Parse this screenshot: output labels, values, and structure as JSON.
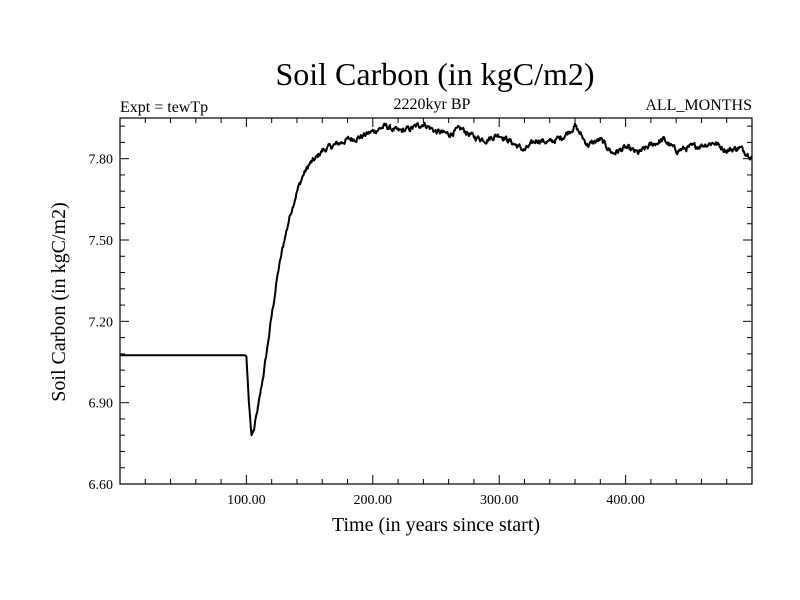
{
  "chart_data": {
    "type": "line",
    "title": "Soil Carbon (in kgC/m2)",
    "subtitle_left": "Expt = tewTp",
    "subtitle_center": "2220kyr BP",
    "subtitle_right": "ALL_MONTHS",
    "xlabel": "Time (in years since start)",
    "ylabel": "Soil Carbon (in kgC/m2)",
    "xlim": [
      0,
      500
    ],
    "ylim": [
      6.6,
      7.95
    ],
    "x_ticks": [
      100,
      200,
      300,
      400
    ],
    "x_tick_labels": [
      "100.00",
      "200.00",
      "300.00",
      "400.00"
    ],
    "y_ticks": [
      6.6,
      6.9,
      7.2,
      7.5,
      7.8
    ],
    "y_tick_labels": [
      "6.60",
      "6.90",
      "7.20",
      "7.50",
      "7.80"
    ],
    "grid": false,
    "series": [
      {
        "name": "Soil Carbon",
        "color": "#000000",
        "x": [
          0,
          99,
          100,
          102,
          104,
          106,
          110,
          115,
          120,
          125,
          130,
          135,
          140,
          145,
          150,
          155,
          160,
          170,
          180,
          190,
          200,
          210,
          220,
          230,
          240,
          250,
          260,
          270,
          280,
          290,
          300,
          310,
          320,
          330,
          340,
          350,
          360,
          370,
          380,
          390,
          400,
          410,
          420,
          430,
          440,
          450,
          460,
          470,
          480,
          490,
          500
        ],
        "values": [
          7.075,
          7.075,
          7.07,
          6.9,
          6.78,
          6.8,
          6.9,
          7.05,
          7.22,
          7.38,
          7.5,
          7.6,
          7.68,
          7.74,
          7.78,
          7.8,
          7.83,
          7.85,
          7.87,
          7.88,
          7.9,
          7.92,
          7.9,
          7.91,
          7.93,
          7.9,
          7.89,
          7.91,
          7.88,
          7.87,
          7.89,
          7.86,
          7.83,
          7.87,
          7.86,
          7.88,
          7.92,
          7.85,
          7.87,
          7.82,
          7.84,
          7.82,
          7.85,
          7.87,
          7.83,
          7.84,
          7.85,
          7.86,
          7.83,
          7.84,
          7.81
        ]
      }
    ]
  }
}
